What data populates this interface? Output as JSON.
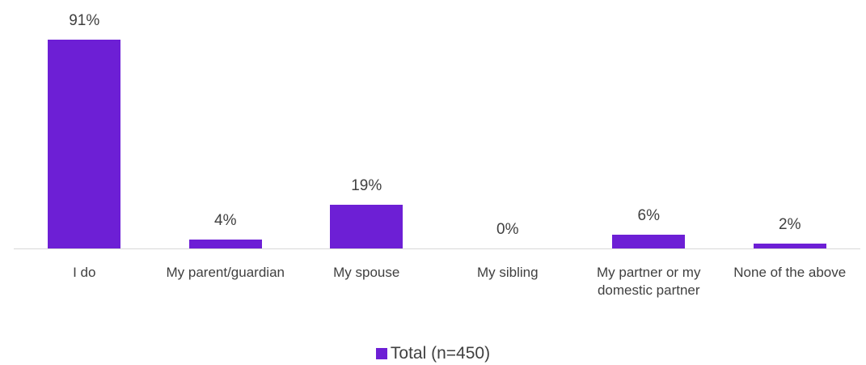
{
  "chart_data": {
    "type": "bar",
    "categories": [
      "I do",
      "My parent/guardian",
      "My spouse",
      "My sibling",
      "My partner or my domestic partner",
      "None of the above"
    ],
    "series": [
      {
        "name": "Total (n=450)",
        "color": "#6d1fd5",
        "values": [
          91,
          4,
          19,
          0,
          6,
          2
        ],
        "value_labels": [
          "91%",
          "4%",
          "19%",
          "0%",
          "6%",
          "2%"
        ]
      }
    ],
    "ylim": [
      0,
      100
    ]
  }
}
